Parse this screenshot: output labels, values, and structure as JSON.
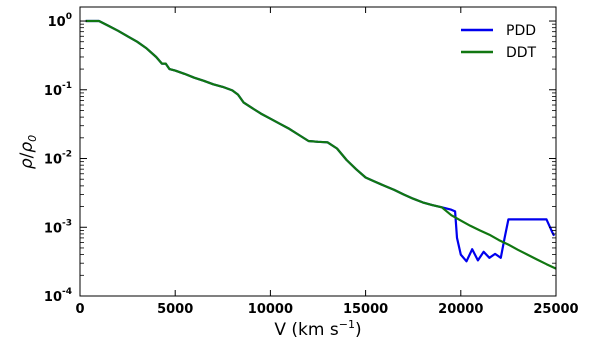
{
  "chart_data": {
    "type": "line",
    "xlabel": "V (km s",
    "xlabel_sup": "−1",
    "xlabel_close": ")",
    "ylabel_num": "ρ",
    "ylabel_den": "ρ",
    "ylabel_den_sub": "0",
    "xlim": [
      0,
      25000
    ],
    "ylim": [
      0.0001,
      1.6
    ],
    "yscale": "log",
    "grid": false,
    "legend_position": "top-right",
    "x_ticks": [
      {
        "value": 0,
        "label": "0"
      },
      {
        "value": 5000,
        "label": "5000"
      },
      {
        "value": 10000,
        "label": "10000"
      },
      {
        "value": 15000,
        "label": "15000"
      },
      {
        "value": 20000,
        "label": "20000"
      },
      {
        "value": 25000,
        "label": "25000"
      }
    ],
    "y_ticks": [
      {
        "value": 1,
        "base": "10",
        "exp": "0"
      },
      {
        "value": 0.1,
        "base": "10",
        "exp": "-1"
      },
      {
        "value": 0.01,
        "base": "10",
        "exp": "-2"
      },
      {
        "value": 0.001,
        "base": "10",
        "exp": "-3"
      },
      {
        "value": 0.0001,
        "base": "10",
        "exp": "-4"
      }
    ],
    "series": [
      {
        "name": "PDD",
        "color": "#0000ee",
        "points": [
          [
            300,
            1.0
          ],
          [
            1000,
            1.0
          ],
          [
            1500,
            0.85
          ],
          [
            2000,
            0.72
          ],
          [
            2500,
            0.6
          ],
          [
            3000,
            0.5
          ],
          [
            3500,
            0.4
          ],
          [
            4000,
            0.3
          ],
          [
            4300,
            0.24
          ],
          [
            4500,
            0.24
          ],
          [
            4700,
            0.2
          ],
          [
            5000,
            0.19
          ],
          [
            5500,
            0.17
          ],
          [
            6000,
            0.15
          ],
          [
            6500,
            0.135
          ],
          [
            7000,
            0.12
          ],
          [
            7500,
            0.11
          ],
          [
            8000,
            0.098
          ],
          [
            8300,
            0.085
          ],
          [
            8600,
            0.065
          ],
          [
            9000,
            0.055
          ],
          [
            9500,
            0.045
          ],
          [
            10000,
            0.038
          ],
          [
            10500,
            0.032
          ],
          [
            11000,
            0.027
          ],
          [
            11500,
            0.022
          ],
          [
            12000,
            0.018
          ],
          [
            12500,
            0.0175
          ],
          [
            13000,
            0.0172
          ],
          [
            13500,
            0.014
          ],
          [
            14000,
            0.0095
          ],
          [
            14500,
            0.007
          ],
          [
            15000,
            0.0053
          ],
          [
            15500,
            0.0046
          ],
          [
            16000,
            0.004
          ],
          [
            16500,
            0.0035
          ],
          [
            17000,
            0.003
          ],
          [
            17500,
            0.0026
          ],
          [
            18000,
            0.0023
          ],
          [
            18500,
            0.0021
          ],
          [
            19000,
            0.00195
          ],
          [
            19500,
            0.0018
          ],
          [
            19700,
            0.0017
          ],
          [
            19800,
            0.0007
          ],
          [
            20000,
            0.0004
          ],
          [
            20300,
            0.00032
          ],
          [
            20600,
            0.00048
          ],
          [
            20900,
            0.00033
          ],
          [
            21200,
            0.00044
          ],
          [
            21500,
            0.00036
          ],
          [
            21800,
            0.00041
          ],
          [
            22100,
            0.00036
          ],
          [
            22300,
            0.0007
          ],
          [
            22500,
            0.0013
          ],
          [
            23000,
            0.0013
          ],
          [
            23500,
            0.0013
          ],
          [
            24000,
            0.0013
          ],
          [
            24500,
            0.0013
          ],
          [
            24800,
            0.00085
          ],
          [
            24900,
            0.00075
          ]
        ]
      },
      {
        "name": "DDT",
        "color": "#117711",
        "points": [
          [
            300,
            1.0
          ],
          [
            1000,
            1.0
          ],
          [
            1500,
            0.85
          ],
          [
            2000,
            0.72
          ],
          [
            2500,
            0.6
          ],
          [
            3000,
            0.5
          ],
          [
            3500,
            0.4
          ],
          [
            4000,
            0.3
          ],
          [
            4300,
            0.24
          ],
          [
            4500,
            0.24
          ],
          [
            4700,
            0.2
          ],
          [
            5000,
            0.19
          ],
          [
            5500,
            0.17
          ],
          [
            6000,
            0.15
          ],
          [
            6500,
            0.135
          ],
          [
            7000,
            0.12
          ],
          [
            7500,
            0.11
          ],
          [
            8000,
            0.098
          ],
          [
            8300,
            0.085
          ],
          [
            8600,
            0.065
          ],
          [
            9000,
            0.055
          ],
          [
            9500,
            0.045
          ],
          [
            10000,
            0.038
          ],
          [
            10500,
            0.032
          ],
          [
            11000,
            0.027
          ],
          [
            11500,
            0.022
          ],
          [
            12000,
            0.018
          ],
          [
            12500,
            0.0175
          ],
          [
            13000,
            0.0172
          ],
          [
            13500,
            0.014
          ],
          [
            14000,
            0.0095
          ],
          [
            14500,
            0.007
          ],
          [
            15000,
            0.0053
          ],
          [
            15500,
            0.0046
          ],
          [
            16000,
            0.004
          ],
          [
            16500,
            0.0035
          ],
          [
            17000,
            0.003
          ],
          [
            17500,
            0.0026
          ],
          [
            18000,
            0.0023
          ],
          [
            18500,
            0.0021
          ],
          [
            19000,
            0.00195
          ],
          [
            19500,
            0.0015
          ],
          [
            20000,
            0.00125
          ],
          [
            20500,
            0.00105
          ],
          [
            21000,
            0.0009
          ],
          [
            21500,
            0.00078
          ],
          [
            22000,
            0.00065
          ],
          [
            22500,
            0.00056
          ],
          [
            23000,
            0.00047
          ],
          [
            23500,
            0.0004
          ],
          [
            24000,
            0.00034
          ],
          [
            24500,
            0.00029
          ],
          [
            25000,
            0.00025
          ]
        ]
      }
    ]
  }
}
